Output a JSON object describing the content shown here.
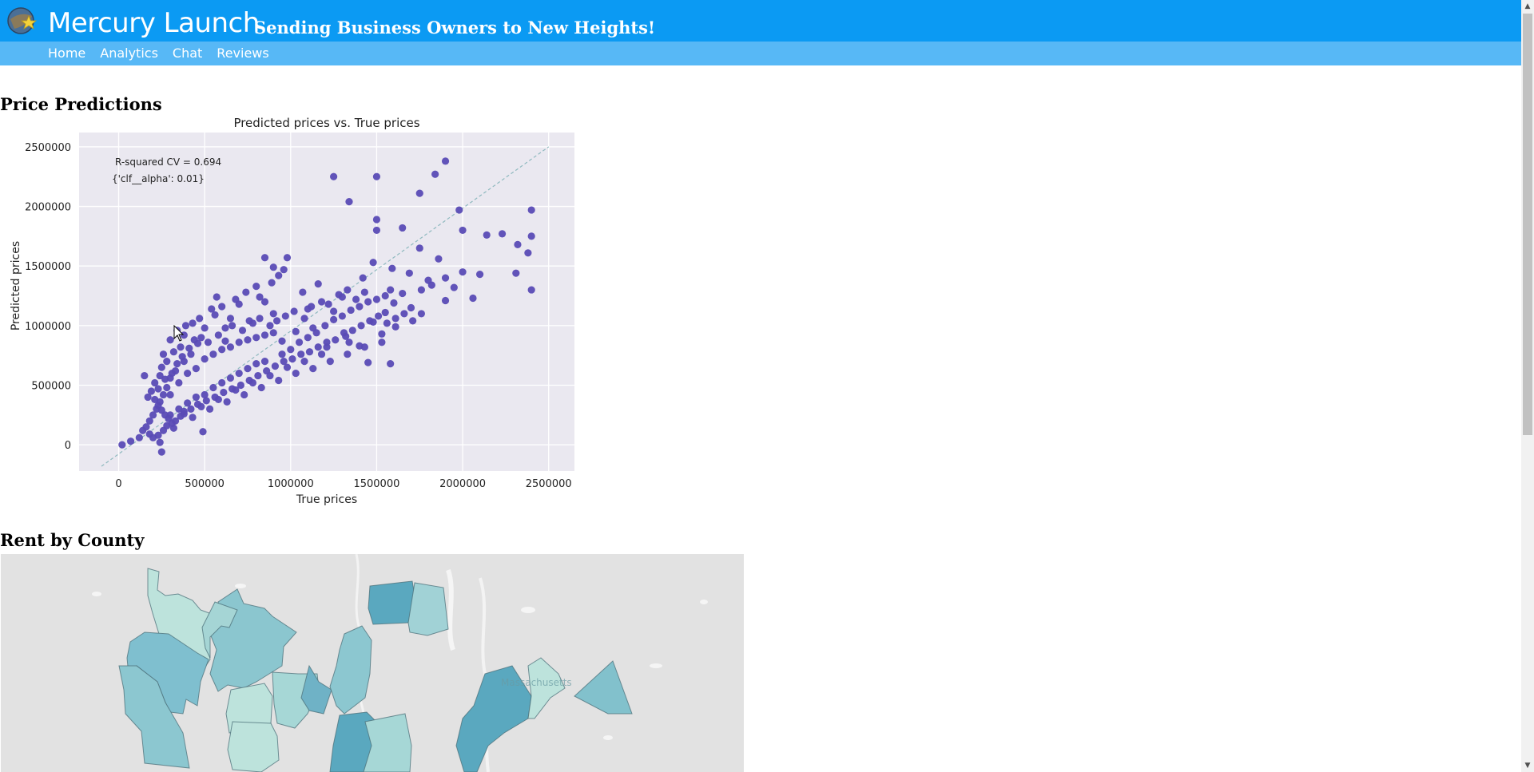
{
  "header": {
    "app_title": "Mercury Launch",
    "tagline": "Sending Business Owners to New Heights!",
    "logo_icon": "planet-star-logo-icon",
    "colors": {
      "brand_bar": "#0b9af3",
      "nav_bar": "#57b8f6"
    }
  },
  "nav": {
    "items": [
      {
        "label": "Home"
      },
      {
        "label": "Analytics"
      },
      {
        "label": "Chat"
      },
      {
        "label": "Reviews"
      }
    ]
  },
  "sections": {
    "price_predictions": "Price Predictions",
    "rent_by_county": "Rent by County"
  },
  "chart_data": {
    "type": "scatter",
    "title": "Predicted prices  vs. True prices",
    "xlabel": "True prices",
    "ylabel": "Predicted prices",
    "xlim": [
      -230000,
      2650000
    ],
    "ylim": [
      -220000,
      2620000
    ],
    "x_ticks": [
      0,
      500000,
      1000000,
      1500000,
      2000000,
      2500000
    ],
    "y_ticks": [
      0,
      500000,
      1000000,
      1500000,
      2000000,
      2500000
    ],
    "x_tick_labels": [
      "0",
      "500000",
      "1000000",
      "1500000",
      "2000000",
      "2500000"
    ],
    "y_tick_labels": [
      "0",
      "500000",
      "1000000",
      "1500000",
      "2000000",
      "2500000"
    ],
    "grid": true,
    "point_color": "#5a4bb5",
    "background_color": "#eae8f0",
    "reference_line": {
      "label": "",
      "from": [
        -100000,
        -180000
      ],
      "to": [
        2500000,
        2500000
      ],
      "style": "dashed",
      "color": "#8fb9bf"
    },
    "annotations": [
      "R-squared CV = 0.694",
      "{'clf__alpha': 0.01}"
    ],
    "series": [
      {
        "points": [
          [
            20000,
            0
          ],
          [
            70000,
            30000
          ],
          [
            120000,
            60000
          ],
          [
            240000,
            20000
          ],
          [
            250000,
            -60000
          ],
          [
            490000,
            110000
          ],
          [
            150000,
            580000
          ],
          [
            380000,
            920000
          ],
          [
            570000,
            1240000
          ],
          [
            850000,
            1570000
          ],
          [
            980000,
            1570000
          ],
          [
            900000,
            1490000
          ],
          [
            960000,
            1470000
          ],
          [
            1250000,
            2250000
          ],
          [
            1500000,
            2250000
          ],
          [
            1340000,
            2040000
          ],
          [
            1840000,
            2270000
          ],
          [
            1900000,
            2380000
          ],
          [
            1750000,
            2110000
          ],
          [
            1980000,
            1970000
          ],
          [
            2400000,
            1970000
          ],
          [
            2000000,
            1800000
          ],
          [
            1500000,
            1890000
          ],
          [
            1500000,
            1800000
          ],
          [
            1650000,
            1820000
          ],
          [
            2140000,
            1760000
          ],
          [
            2230000,
            1770000
          ],
          [
            2320000,
            1680000
          ],
          [
            2380000,
            1610000
          ],
          [
            2400000,
            1750000
          ],
          [
            2400000,
            1300000
          ],
          [
            2310000,
            1440000
          ],
          [
            2100000,
            1430000
          ],
          [
            2060000,
            1230000
          ],
          [
            1950000,
            1320000
          ],
          [
            1900000,
            1210000
          ],
          [
            1820000,
            1340000
          ],
          [
            1760000,
            1300000
          ],
          [
            1860000,
            1560000
          ],
          [
            1750000,
            1650000
          ],
          [
            1690000,
            1440000
          ],
          [
            1590000,
            1480000
          ],
          [
            1480000,
            1530000
          ],
          [
            1420000,
            1400000
          ],
          [
            1300000,
            1240000
          ],
          [
            1250000,
            1120000
          ],
          [
            1160000,
            1350000
          ],
          [
            1100000,
            1140000
          ],
          [
            1070000,
            1280000
          ],
          [
            1580000,
            1300000
          ],
          [
            1550000,
            1110000
          ],
          [
            1480000,
            1030000
          ],
          [
            1400000,
            830000
          ],
          [
            1450000,
            690000
          ],
          [
            1580000,
            680000
          ],
          [
            1320000,
            910000
          ],
          [
            1210000,
            820000
          ],
          [
            1130000,
            980000
          ],
          [
            1030000,
            950000
          ],
          [
            950000,
            870000
          ],
          [
            900000,
            1100000
          ],
          [
            850000,
            1200000
          ],
          [
            800000,
            1330000
          ],
          [
            760000,
            1040000
          ],
          [
            700000,
            1180000
          ],
          [
            650000,
            1060000
          ],
          [
            620000,
            870000
          ],
          [
            560000,
            1090000
          ],
          [
            500000,
            980000
          ],
          [
            460000,
            850000
          ],
          [
            420000,
            760000
          ],
          [
            380000,
            700000
          ],
          [
            330000,
            620000
          ],
          [
            300000,
            560000
          ],
          [
            280000,
            480000
          ],
          [
            260000,
            420000
          ],
          [
            240000,
            360000
          ],
          [
            220000,
            300000
          ],
          [
            200000,
            250000
          ],
          [
            180000,
            200000
          ],
          [
            160000,
            150000
          ],
          [
            140000,
            120000
          ],
          [
            300000,
            420000
          ],
          [
            350000,
            520000
          ],
          [
            400000,
            600000
          ],
          [
            450000,
            640000
          ],
          [
            500000,
            720000
          ],
          [
            550000,
            760000
          ],
          [
            600000,
            800000
          ],
          [
            650000,
            820000
          ],
          [
            700000,
            860000
          ],
          [
            750000,
            880000
          ],
          [
            800000,
            900000
          ],
          [
            850000,
            920000
          ],
          [
            900000,
            940000
          ],
          [
            300000,
            250000
          ],
          [
            350000,
            300000
          ],
          [
            400000,
            350000
          ],
          [
            450000,
            400000
          ],
          [
            500000,
            420000
          ],
          [
            550000,
            480000
          ],
          [
            600000,
            520000
          ],
          [
            650000,
            560000
          ],
          [
            700000,
            600000
          ],
          [
            750000,
            640000
          ],
          [
            800000,
            680000
          ],
          [
            850000,
            700000
          ],
          [
            950000,
            760000
          ],
          [
            1000000,
            800000
          ],
          [
            1050000,
            860000
          ],
          [
            1100000,
            900000
          ],
          [
            1150000,
            940000
          ],
          [
            1200000,
            1000000
          ],
          [
            1250000,
            1050000
          ],
          [
            1300000,
            1080000
          ],
          [
            1350000,
            1130000
          ],
          [
            1400000,
            1160000
          ],
          [
            1450000,
            1200000
          ],
          [
            1500000,
            1220000
          ],
          [
            1550000,
            1250000
          ],
          [
            1600000,
            1190000
          ],
          [
            1650000,
            1270000
          ],
          [
            1700000,
            1150000
          ],
          [
            1800000,
            1380000
          ],
          [
            1900000,
            1400000
          ],
          [
            2000000,
            1450000
          ],
          [
            250000,
            650000
          ],
          [
            280000,
            700000
          ],
          [
            320000,
            780000
          ],
          [
            360000,
            820000
          ],
          [
            240000,
            580000
          ],
          [
            210000,
            520000
          ],
          [
            190000,
            450000
          ],
          [
            170000,
            400000
          ],
          [
            230000,
            470000
          ],
          [
            270000,
            550000
          ],
          [
            310000,
            600000
          ],
          [
            340000,
            680000
          ],
          [
            370000,
            740000
          ],
          [
            410000,
            810000
          ],
          [
            440000,
            880000
          ],
          [
            480000,
            900000
          ],
          [
            520000,
            860000
          ],
          [
            580000,
            920000
          ],
          [
            620000,
            980000
          ],
          [
            660000,
            1000000
          ],
          [
            720000,
            960000
          ],
          [
            780000,
            1020000
          ],
          [
            820000,
            1060000
          ],
          [
            880000,
            1000000
          ],
          [
            920000,
            1040000
          ],
          [
            970000,
            1080000
          ],
          [
            1020000,
            1120000
          ],
          [
            1080000,
            1060000
          ],
          [
            1120000,
            1160000
          ],
          [
            1180000,
            1200000
          ],
          [
            1220000,
            1180000
          ],
          [
            1280000,
            1260000
          ],
          [
            1330000,
            1300000
          ],
          [
            1380000,
            1220000
          ],
          [
            1430000,
            1280000
          ],
          [
            210000,
            380000
          ],
          [
            230000,
            330000
          ],
          [
            250000,
            290000
          ],
          [
            270000,
            250000
          ],
          [
            290000,
            220000
          ],
          [
            310000,
            180000
          ],
          [
            330000,
            200000
          ],
          [
            360000,
            240000
          ],
          [
            380000,
            280000
          ],
          [
            420000,
            300000
          ],
          [
            460000,
            340000
          ],
          [
            510000,
            370000
          ],
          [
            560000,
            400000
          ],
          [
            610000,
            440000
          ],
          [
            660000,
            470000
          ],
          [
            710000,
            500000
          ],
          [
            760000,
            540000
          ],
          [
            810000,
            580000
          ],
          [
            860000,
            620000
          ],
          [
            910000,
            660000
          ],
          [
            960000,
            700000
          ],
          [
            1010000,
            720000
          ],
          [
            1060000,
            760000
          ],
          [
            1110000,
            780000
          ],
          [
            1160000,
            820000
          ],
          [
            1210000,
            860000
          ],
          [
            1260000,
            880000
          ],
          [
            1310000,
            940000
          ],
          [
            1360000,
            960000
          ],
          [
            1410000,
            1000000
          ],
          [
            1460000,
            1040000
          ],
          [
            1510000,
            1080000
          ],
          [
            1560000,
            1020000
          ],
          [
            1610000,
            1060000
          ],
          [
            1660000,
            1100000
          ],
          [
            1710000,
            1040000
          ],
          [
            1760000,
            1100000
          ],
          [
            1610000,
            990000
          ],
          [
            1530000,
            930000
          ],
          [
            1340000,
            860000
          ],
          [
            1180000,
            760000
          ],
          [
            1080000,
            700000
          ],
          [
            980000,
            650000
          ],
          [
            880000,
            580000
          ],
          [
            780000,
            520000
          ],
          [
            680000,
            460000
          ],
          [
            580000,
            380000
          ],
          [
            480000,
            320000
          ],
          [
            380000,
            260000
          ],
          [
            280000,
            160000
          ],
          [
            260000,
            120000
          ],
          [
            230000,
            80000
          ],
          [
            200000,
            60000
          ],
          [
            180000,
            90000
          ],
          [
            320000,
            140000
          ],
          [
            430000,
            230000
          ],
          [
            530000,
            300000
          ],
          [
            630000,
            360000
          ],
          [
            730000,
            420000
          ],
          [
            830000,
            480000
          ],
          [
            930000,
            540000
          ],
          [
            1030000,
            600000
          ],
          [
            1130000,
            640000
          ],
          [
            1230000,
            700000
          ],
          [
            1330000,
            760000
          ],
          [
            1430000,
            820000
          ],
          [
            1530000,
            860000
          ],
          [
            260000,
            760000
          ],
          [
            300000,
            880000
          ],
          [
            340000,
            960000
          ],
          [
            390000,
            1000000
          ],
          [
            430000,
            1020000
          ],
          [
            470000,
            1060000
          ],
          [
            540000,
            1140000
          ],
          [
            600000,
            1160000
          ],
          [
            680000,
            1220000
          ],
          [
            740000,
            1280000
          ],
          [
            820000,
            1240000
          ],
          [
            890000,
            1360000
          ],
          [
            930000,
            1420000
          ]
        ]
      }
    ]
  },
  "map": {
    "attribution_text": "Massachusetts",
    "colors": {
      "background": "#e3e3e3",
      "light": "#bde3dc",
      "mid": "#82c1cc",
      "dark": "#5aa8bf"
    }
  },
  "cursor": "arrow-cursor-icon"
}
